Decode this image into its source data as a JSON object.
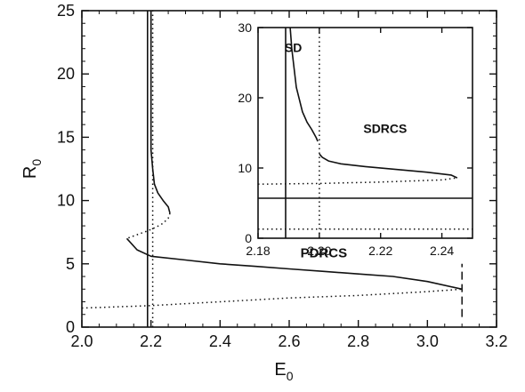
{
  "chart_data": [
    {
      "type": "line",
      "xlabel": "E",
      "xlabel_sub": "0",
      "ylabel": "R",
      "ylabel_sub": "0",
      "xlim": [
        2.0,
        3.2
      ],
      "ylim": [
        0,
        25
      ],
      "xticks": [
        2.0,
        2.2,
        2.4,
        2.6,
        2.8,
        3.0,
        3.2
      ],
      "xtick_labels": [
        "2.0",
        "2.2",
        "2.4",
        "2.6",
        "2.8",
        "3.0",
        "3.2"
      ],
      "yticks": [
        0,
        5,
        10,
        15,
        20,
        25
      ],
      "ytick_labels": [
        "0",
        "5",
        "10",
        "15",
        "20",
        "25"
      ],
      "grid": false,
      "annotations": [
        {
          "text": "PDRCS",
          "x": 2.7,
          "y": 5.5
        }
      ],
      "series": [
        {
          "style": "solid",
          "x": [
            2.19,
            2.19
          ],
          "y": [
            0,
            25
          ]
        },
        {
          "style": "solid",
          "x": [
            2.2,
            2.2,
            2.205,
            2.21,
            2.22,
            2.235,
            2.25,
            2.255
          ],
          "y": [
            25,
            14,
            12.5,
            11.3,
            10.6,
            10.0,
            9.5,
            9.0
          ]
        },
        {
          "style": "dotted",
          "x": [
            2.205,
            2.205
          ],
          "y": [
            0,
            25
          ]
        },
        {
          "style": "dotted",
          "x": [
            2.255,
            2.25,
            2.235,
            2.215,
            2.19,
            2.16,
            2.13
          ],
          "y": [
            9.0,
            8.6,
            8.2,
            7.9,
            7.6,
            7.3,
            7.0
          ]
        },
        {
          "style": "solid",
          "x": [
            2.13,
            2.16,
            2.2,
            2.3,
            2.4,
            2.5,
            2.6,
            2.7,
            2.8,
            2.9,
            3.0,
            3.1
          ],
          "y": [
            7.0,
            6.1,
            5.6,
            5.3,
            5.0,
            4.8,
            4.6,
            4.4,
            4.2,
            4.0,
            3.6,
            3.0
          ]
        },
        {
          "style": "dashed",
          "x": [
            3.1,
            3.1
          ],
          "y": [
            0.8,
            5.0
          ]
        },
        {
          "style": "dotted",
          "x": [
            2.0,
            2.2,
            2.4,
            2.6,
            2.8,
            3.0,
            3.1
          ],
          "y": [
            1.5,
            1.7,
            2.0,
            2.3,
            2.5,
            2.8,
            3.0
          ]
        }
      ]
    },
    {
      "type": "line",
      "xlim": [
        2.18,
        2.25
      ],
      "ylim": [
        0,
        30
      ],
      "xticks": [
        2.18,
        2.2,
        2.22,
        2.24
      ],
      "xtick_labels": [
        "2.18",
        "2.20",
        "2.22",
        "2.24"
      ],
      "yticks": [
        0,
        10,
        20,
        30
      ],
      "ytick_labels": [
        "0",
        "10",
        "20",
        "30"
      ],
      "grid": false,
      "annotations": [
        {
          "text": "SD",
          "x": 2.1915,
          "y": 26.5
        },
        {
          "text": "SDRCS",
          "x": 2.2215,
          "y": 15
        }
      ],
      "series": [
        {
          "style": "solid",
          "x": [
            2.189,
            2.189
          ],
          "y": [
            0,
            30
          ]
        },
        {
          "style": "solid",
          "x": [
            2.18,
            2.25
          ],
          "y": [
            5.7,
            5.7
          ]
        },
        {
          "style": "dotted",
          "x": [
            2.2,
            2.2
          ],
          "y": [
            0,
            30
          ]
        },
        {
          "style": "dotted",
          "x": [
            2.18,
            2.25
          ],
          "y": [
            1.3,
            1.3
          ]
        },
        {
          "style": "dotted",
          "x": [
            2.18,
            2.2,
            2.22,
            2.24,
            2.245
          ],
          "y": [
            7.7,
            7.8,
            8.0,
            8.3,
            8.6
          ]
        },
        {
          "style": "solid",
          "x": [
            2.1905,
            2.191,
            2.1925,
            2.1945,
            2.196,
            2.1975,
            2.199,
            2.1995
          ],
          "y": [
            30,
            27,
            21.5,
            18,
            16.5,
            15.5,
            14.3,
            13.8
          ]
        },
        {
          "style": "solid",
          "x": [
            2.2,
            2.201,
            2.203,
            2.207,
            2.215,
            2.225,
            2.235,
            2.243,
            2.245
          ],
          "y": [
            12.0,
            11.5,
            11.0,
            10.6,
            10.2,
            9.8,
            9.4,
            9.0,
            8.6
          ]
        }
      ]
    }
  ]
}
